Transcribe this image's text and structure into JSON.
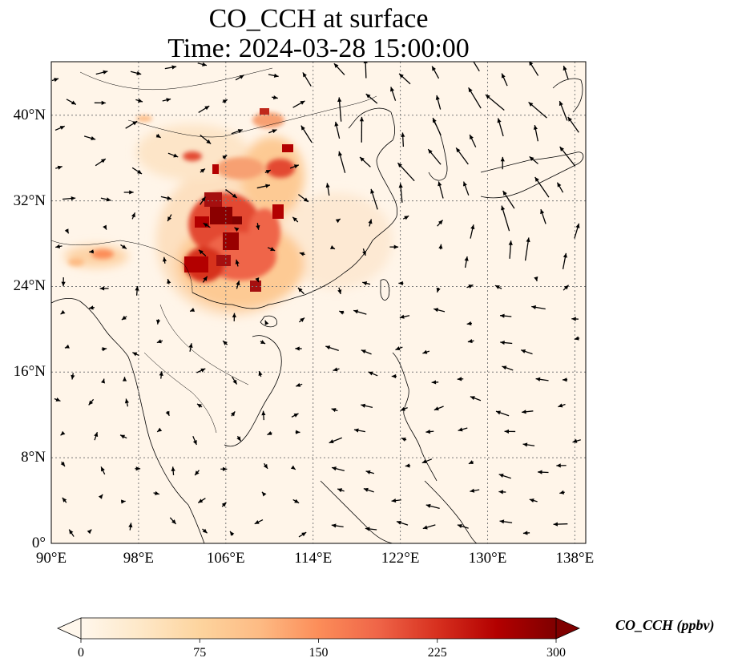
{
  "title": {
    "line1": "CO_CCH at surface",
    "line2": "Time: 2024-03-28 15:00:00"
  },
  "map": {
    "projection": "PlateCarree",
    "lon_range": [
      90,
      139
    ],
    "lat_range": [
      0,
      45
    ],
    "gridlines": "dotted",
    "field": "CO_CCH",
    "wind_vectors": true
  },
  "axes": {
    "xticks": [
      {
        "lon": 90,
        "label": "90°E"
      },
      {
        "lon": 98,
        "label": "98°E"
      },
      {
        "lon": 106,
        "label": "106°E"
      },
      {
        "lon": 114,
        "label": "114°E"
      },
      {
        "lon": 122,
        "label": "122°E"
      },
      {
        "lon": 130,
        "label": "130°E"
      },
      {
        "lon": 138,
        "label": "138°E"
      }
    ],
    "yticks": [
      {
        "lat": 0,
        "label": "0°"
      },
      {
        "lat": 8,
        "label": "8°N"
      },
      {
        "lat": 16,
        "label": "16°N"
      },
      {
        "lat": 24,
        "label": "24°N"
      },
      {
        "lat": 32,
        "label": "32°N"
      },
      {
        "lat": 40,
        "label": "40°N"
      }
    ]
  },
  "colorbar": {
    "label": "CO_CCH (ppbv)",
    "min": 0,
    "max": 300,
    "extend": "both",
    "colormap": "OrRd",
    "colors": [
      "#fff7ec",
      "#fee8c8",
      "#fdd49e",
      "#fdbb84",
      "#fc8d59",
      "#ef6548",
      "#d7301f",
      "#b30000",
      "#7f0000"
    ],
    "ticks": [
      {
        "value": 0,
        "label": "0"
      },
      {
        "value": 75,
        "label": "75"
      },
      {
        "value": 150,
        "label": "150"
      },
      {
        "value": 225,
        "label": "225"
      },
      {
        "value": 300,
        "label": "300"
      }
    ]
  }
}
